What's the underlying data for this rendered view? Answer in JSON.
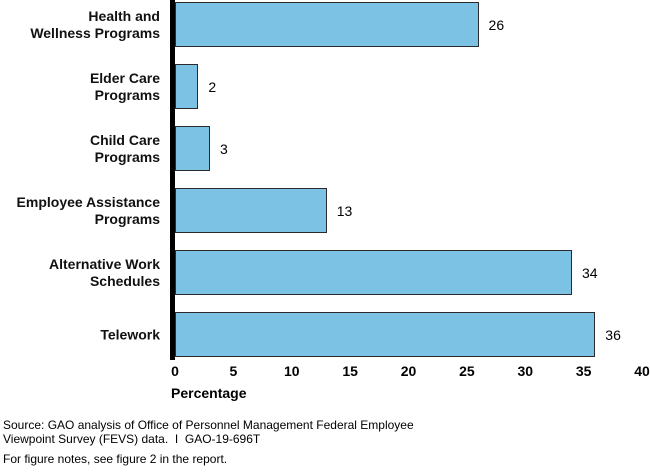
{
  "chart_data": {
    "type": "bar",
    "orientation": "horizontal",
    "title": "",
    "categories": [
      "Health and Wellness Programs",
      "Elder Care Programs",
      "Child Care Programs",
      "Employee Assistance Programs",
      "Alternative Work Schedules",
      "Telework"
    ],
    "category_lines": [
      [
        "Health and",
        "Wellness Programs"
      ],
      [
        "Elder Care",
        "Programs"
      ],
      [
        "Child Care",
        "Programs"
      ],
      [
        "Employee Assistance",
        "Programs"
      ],
      [
        "Alternative Work",
        "Schedules"
      ],
      [
        "Telework"
      ]
    ],
    "values": [
      26,
      2,
      3,
      13,
      34,
      36
    ],
    "xlabel": "Percentage",
    "ylabel": "",
    "xlim": [
      0,
      40
    ],
    "xticks": [
      0,
      5,
      10,
      15,
      20,
      25,
      30,
      35,
      40
    ],
    "grid": false,
    "legend": false,
    "bar_color": "#7CC2E5",
    "bar_border_color": "#2B2B2B",
    "axis_color": "#000000"
  },
  "footer": {
    "source_line1": "Source: GAO analysis of Office of Personnel Management Federal Employee",
    "source_line2": "Viewpoint Survey (FEVS) data.  I  GAO-19-696T",
    "notes": "For figure notes, see figure 2 in the report."
  }
}
